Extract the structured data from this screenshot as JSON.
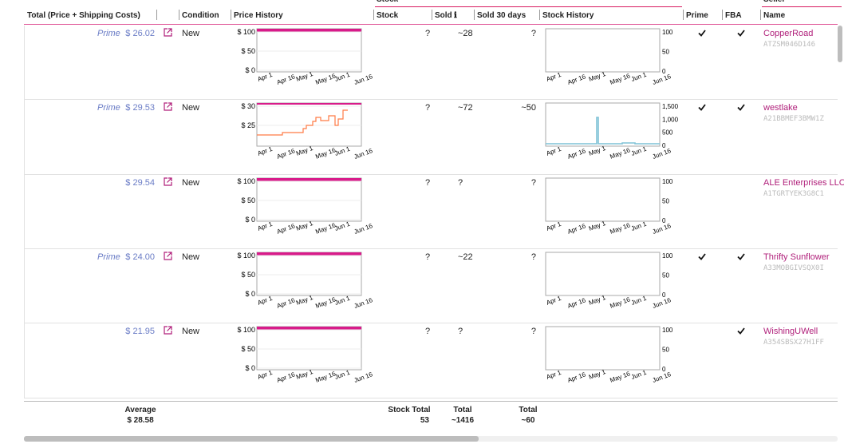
{
  "group_headers": [
    "Stock",
    "Seller"
  ],
  "columns": [
    "Total (Price + Shipping Costs)",
    "Condition",
    "Price History",
    "Stock",
    "Sold",
    "Sold 30 days",
    "Stock History",
    "Prime",
    "FBA",
    "Name"
  ],
  "date_labels": [
    "Apr 1",
    "Apr 16",
    "May 1",
    "May 16",
    "Jun 1",
    "Jun 16"
  ],
  "rows": [
    {
      "prime_label": "Prime",
      "price": "$ 26.02",
      "condition": "New",
      "price_ticks": [
        "$ 100",
        "$ 50",
        "$ 0"
      ],
      "stock": "?",
      "sold": "~28",
      "sold_30": "?",
      "stock_ticks": [
        "100",
        "50",
        "0"
      ],
      "prime": true,
      "fba": true,
      "seller": "CopperRoad",
      "seller_id": "ATZSM046D146"
    },
    {
      "prime_label": "Prime",
      "price": "$ 29.53",
      "condition": "New",
      "price_ticks": [
        "$ 30",
        "$ 25"
      ],
      "stock": "?",
      "sold": "~72",
      "sold_30": "~50",
      "stock_ticks": [
        "1,500",
        "1,000",
        "500",
        "0"
      ],
      "prime": true,
      "fba": true,
      "seller": "westlake",
      "seller_id": "A21BBMEF3BMW1Z"
    },
    {
      "price": "$ 29.54",
      "condition": "New",
      "price_ticks": [
        "$ 100",
        "$ 50",
        "$ 0"
      ],
      "stock": "?",
      "sold": "?",
      "sold_30": "?",
      "stock_ticks": [
        "100",
        "50",
        "0"
      ],
      "prime": false,
      "fba": false,
      "seller": "ALE Enterprises LLC",
      "seller_id": "A1TGRTYEK3G8C1"
    },
    {
      "prime_label": "Prime",
      "price": "$ 24.00",
      "condition": "New",
      "price_ticks": [
        "$ 100",
        "$ 50",
        "$ 0"
      ],
      "stock": "?",
      "sold": "~22",
      "sold_30": "?",
      "stock_ticks": [
        "100",
        "50",
        "0"
      ],
      "prime": true,
      "fba": true,
      "seller": "Thrifty Sunflower",
      "seller_id": "A33MOBGIVSQX0I"
    },
    {
      "price": "$ 21.95",
      "condition": "New",
      "price_ticks": [
        "$ 100",
        "$ 50",
        "$ 0"
      ],
      "stock": "?",
      "sold": "?",
      "sold_30": "?",
      "stock_ticks": [
        "100",
        "50",
        "0"
      ],
      "prime": false,
      "fba": true,
      "seller": "WishingUWell",
      "seller_id": "A354SBSX27H1FF"
    }
  ],
  "footer": {
    "average_label": "Average",
    "average": "$ 28.58",
    "stock_total_label": "Stock Total",
    "stock_total": "53",
    "sold_total_label": "Total",
    "sold_total": "~1416",
    "sold30_total_label": "Total",
    "sold30_total": "~60"
  }
}
